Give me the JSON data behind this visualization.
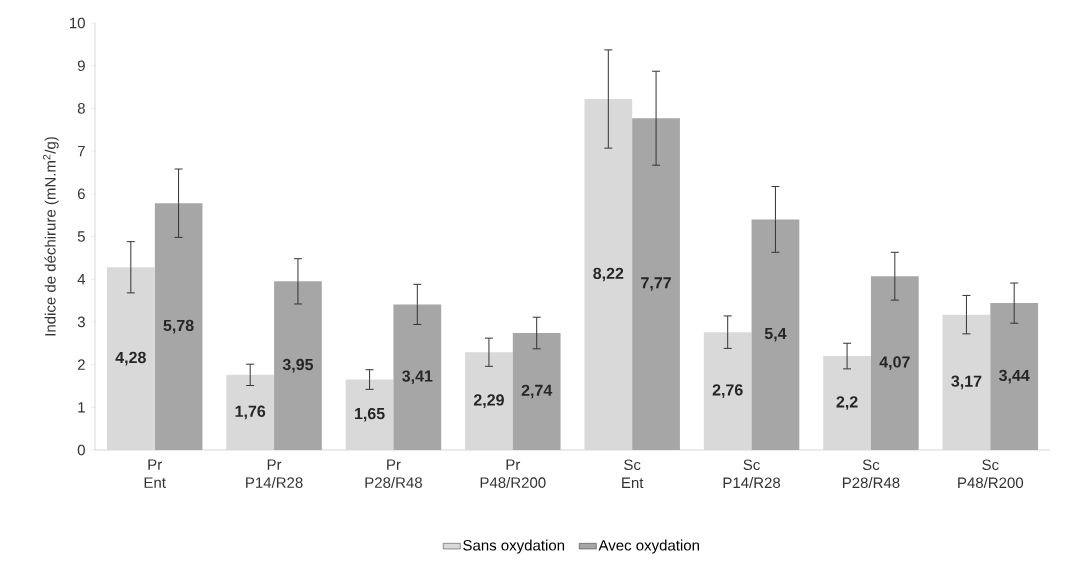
{
  "chart_data": {
    "type": "bar",
    "ylabel": "Indice de déchirure (mN.m$^{2}$/g)",
    "categories": [
      "Pr\nEnt",
      "Pr\nP14/R28",
      "Pr\nP28/R48",
      "Pr\nP48/R200",
      "Sc\nEnt",
      "Sc\nP14/R28",
      "Sc\nP28/R48",
      "Sc\nP48/R200"
    ],
    "series": [
      {
        "name": "Sans oxydation",
        "color": "#d9d9d9",
        "values": [
          4.28,
          1.76,
          1.65,
          2.29,
          8.22,
          2.76,
          2.2,
          3.17
        ],
        "errors": [
          0.6,
          0.25,
          0.23,
          0.33,
          1.15,
          0.38,
          0.3,
          0.45
        ],
        "value_labels": [
          "4,28",
          "1,76",
          "1,65",
          "2,29",
          "8,22",
          "2,76",
          "2,2",
          "3,17"
        ]
      },
      {
        "name": "Avec oxydation",
        "color": "#a6a6a6",
        "values": [
          5.78,
          3.95,
          3.41,
          2.74,
          7.77,
          5.4,
          4.07,
          3.44
        ],
        "errors": [
          0.8,
          0.53,
          0.47,
          0.37,
          1.1,
          0.77,
          0.56,
          0.47
        ],
        "value_labels": [
          "5,78",
          "3,95",
          "3,41",
          "2,74",
          "7,77",
          "5,4",
          "4,07",
          "3,44"
        ]
      }
    ],
    "ylim": [
      0,
      10
    ],
    "yticks": [
      0,
      1,
      2,
      3,
      4,
      5,
      6,
      7,
      8,
      9,
      10
    ],
    "grid": false,
    "legend": "bottom"
  }
}
